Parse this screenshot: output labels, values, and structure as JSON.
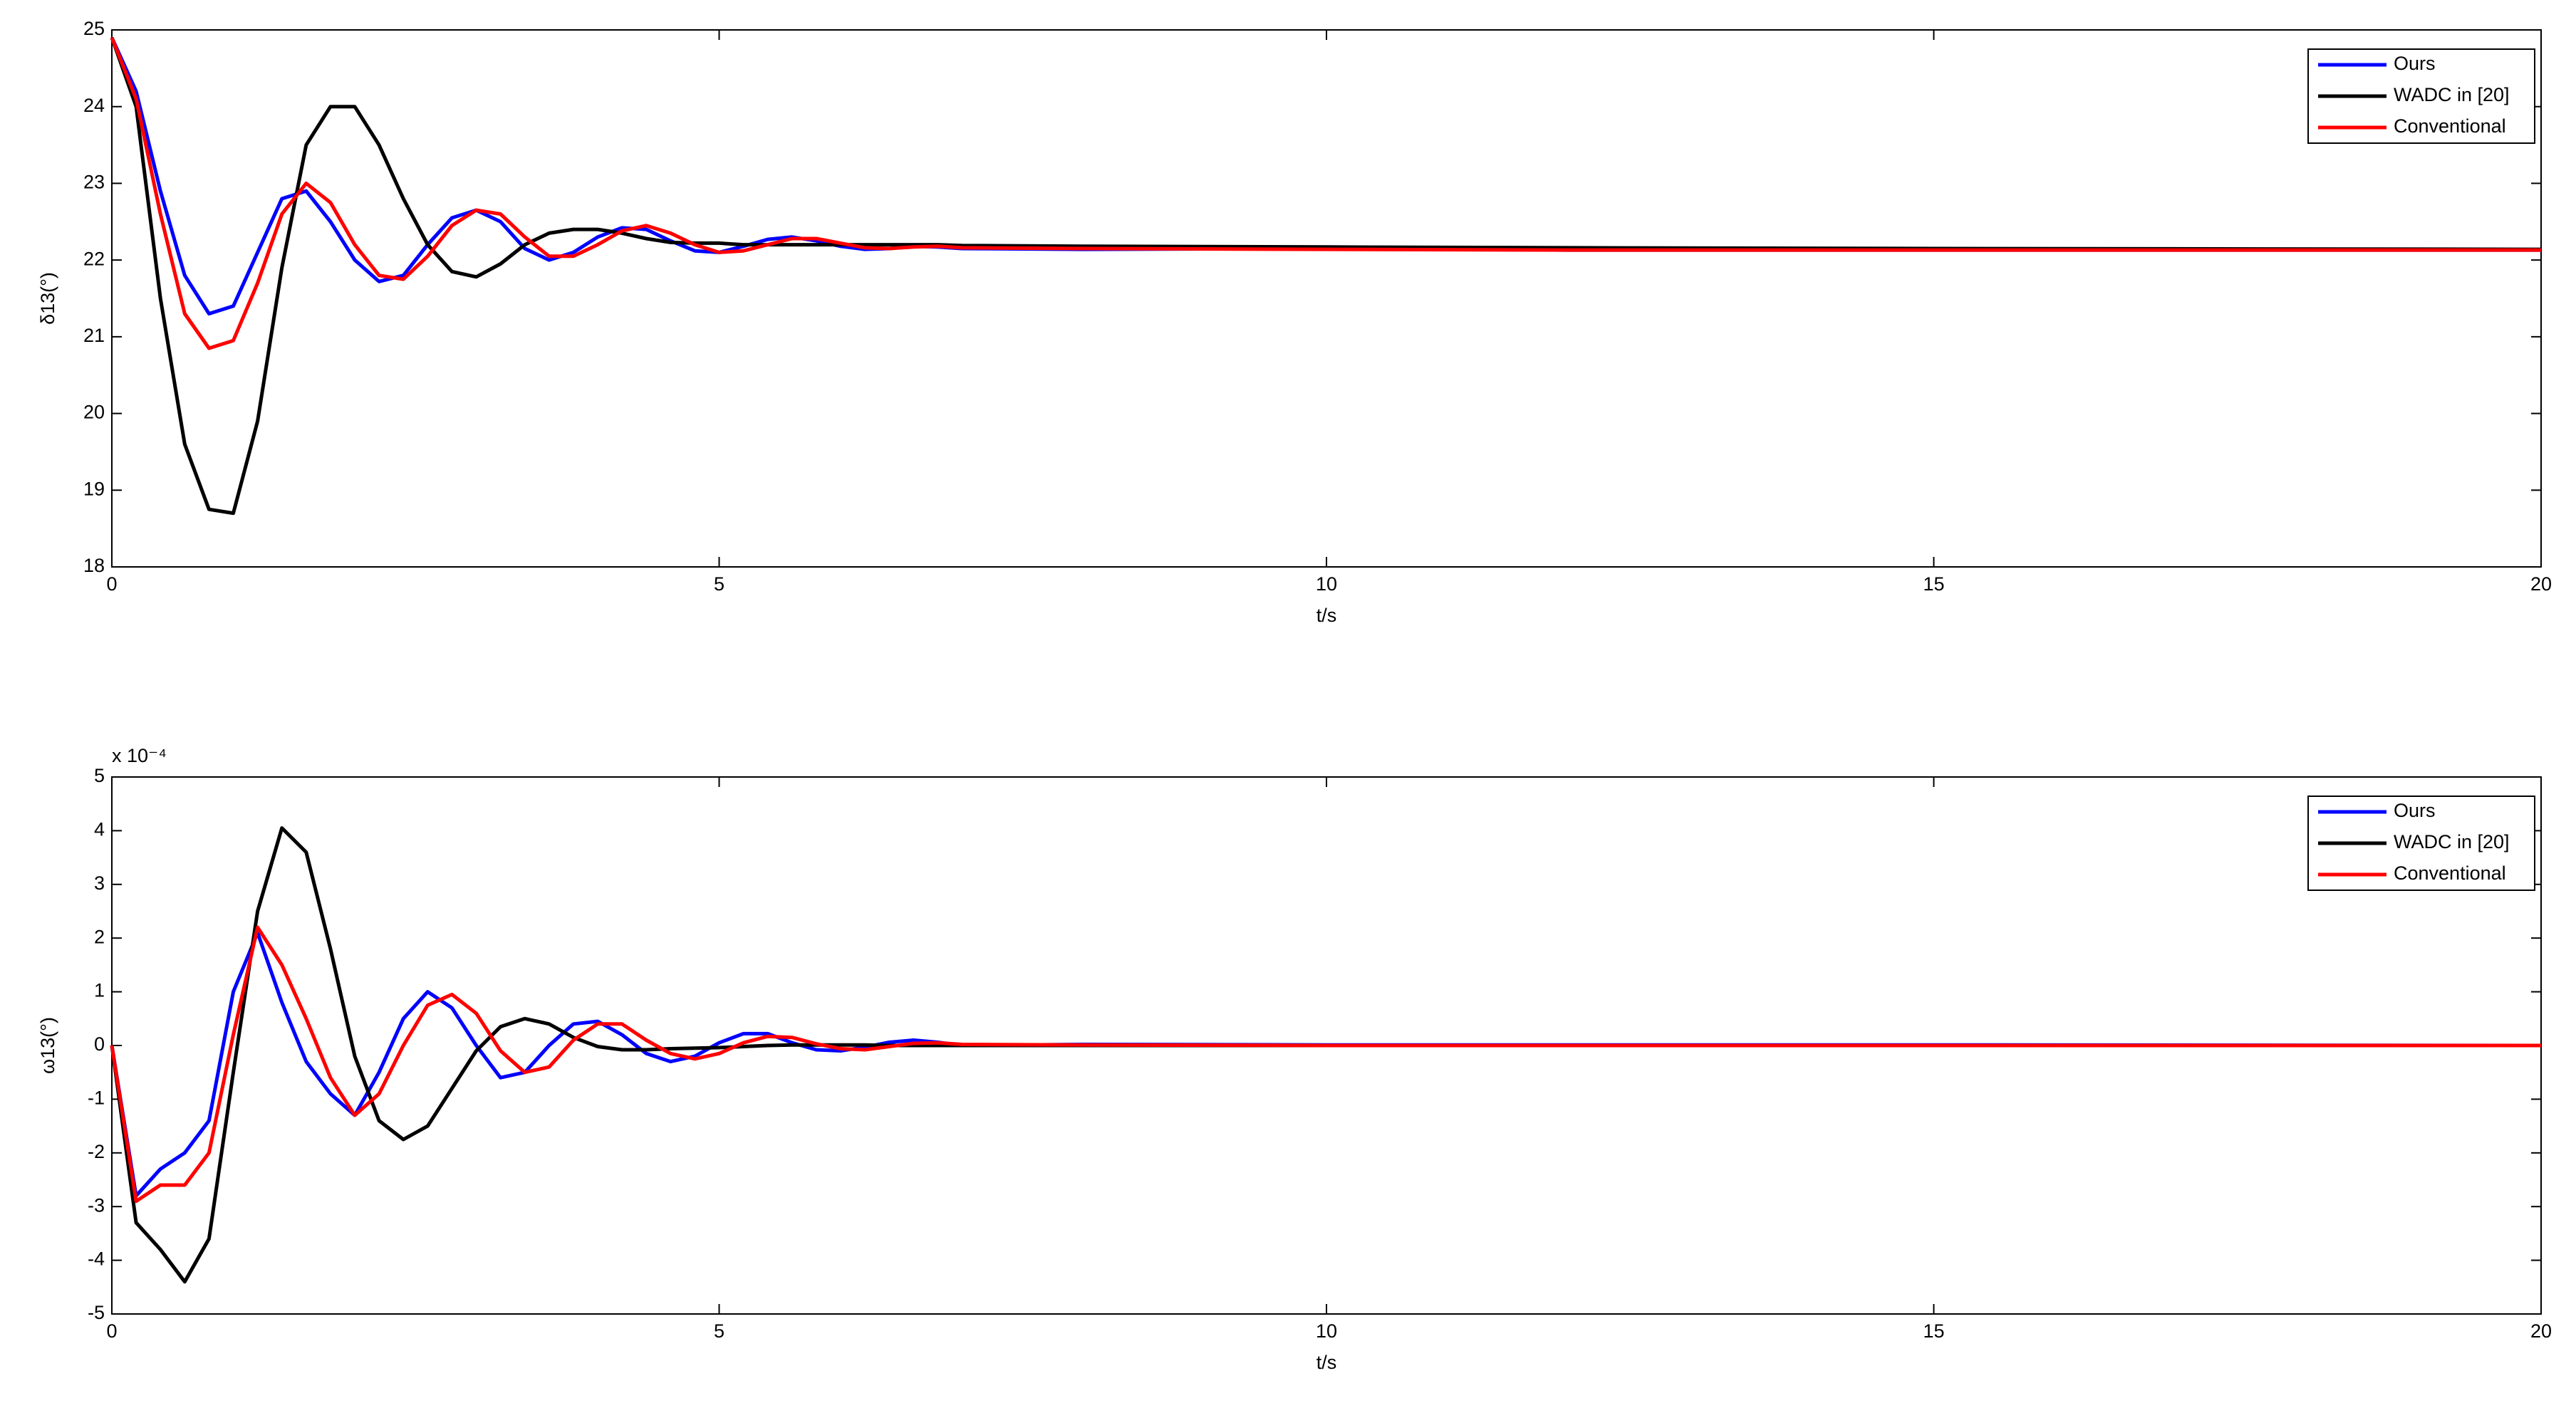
{
  "chart_data": [
    {
      "type": "line",
      "x_label": "t/s",
      "y_label": "δ13(°)",
      "legend": "upper right",
      "xlim": [
        0,
        20
      ],
      "xticks": [
        0,
        5,
        10,
        15,
        20
      ],
      "ylim": [
        18,
        25
      ],
      "yticks": [
        18,
        19,
        20,
        21,
        22,
        23,
        24,
        25
      ],
      "x": [
        0,
        0.2,
        0.4,
        0.6,
        0.8,
        1.0,
        1.2,
        1.4,
        1.6,
        1.8,
        2.0,
        2.2,
        2.4,
        2.6,
        2.8,
        3.0,
        3.2,
        3.4,
        3.6,
        3.8,
        4.0,
        4.2,
        4.4,
        4.6,
        4.8,
        5.0,
        5.2,
        5.4,
        5.6,
        5.8,
        6.0,
        6.2,
        6.4,
        6.6,
        6.8,
        7.0,
        8,
        10,
        12,
        15,
        20
      ],
      "series": [
        {
          "name": "Ours",
          "color": "#0000ff",
          "values": [
            24.9,
            24.2,
            22.9,
            21.8,
            21.3,
            21.4,
            22.1,
            22.8,
            22.9,
            22.5,
            22.0,
            21.72,
            21.8,
            22.2,
            22.55,
            22.65,
            22.5,
            22.15,
            22.0,
            22.1,
            22.3,
            22.42,
            22.4,
            22.25,
            22.12,
            22.1,
            22.18,
            22.27,
            22.3,
            22.25,
            22.18,
            22.14,
            22.15,
            22.18,
            22.17,
            22.15,
            22.14,
            22.15,
            22.13,
            22.13,
            22.13
          ]
        },
        {
          "name": "WADC in [20]",
          "color": "#000000",
          "values": [
            24.9,
            24.0,
            21.5,
            19.6,
            18.75,
            18.7,
            19.9,
            21.9,
            23.5,
            24.0,
            24.0,
            23.5,
            22.8,
            22.2,
            21.85,
            21.78,
            21.95,
            22.2,
            22.35,
            22.4,
            22.4,
            22.35,
            22.28,
            22.23,
            22.22,
            22.22,
            22.2,
            22.2,
            22.2,
            22.2,
            22.2,
            22.2,
            22.2,
            22.2,
            22.2,
            22.19,
            22.18,
            22.17,
            22.16,
            22.15,
            22.14
          ]
        },
        {
          "name": "Conventional",
          "color": "#ff0000",
          "values": [
            24.9,
            24.1,
            22.6,
            21.3,
            20.85,
            20.95,
            21.7,
            22.6,
            23.0,
            22.75,
            22.2,
            21.8,
            21.75,
            22.05,
            22.45,
            22.65,
            22.6,
            22.3,
            22.05,
            22.05,
            22.2,
            22.38,
            22.45,
            22.35,
            22.2,
            22.1,
            22.12,
            22.2,
            22.28,
            22.28,
            22.22,
            22.16,
            22.15,
            22.17,
            22.18,
            22.16,
            22.15,
            22.14,
            22.13,
            22.13,
            22.13
          ]
        }
      ]
    },
    {
      "type": "line",
      "x_label": "t/s",
      "y_label": "ω13(°)",
      "y_multiplier_label": "x 10⁻⁴",
      "legend": "upper right",
      "xlim": [
        0,
        20
      ],
      "xticks": [
        0,
        5,
        10,
        15,
        20
      ],
      "ylim": [
        -5,
        5
      ],
      "yticks": [
        -5,
        -4,
        -3,
        -2,
        -1,
        0,
        1,
        2,
        3,
        4,
        5
      ],
      "x": [
        0,
        0.2,
        0.4,
        0.6,
        0.8,
        1.0,
        1.2,
        1.4,
        1.6,
        1.8,
        2.0,
        2.2,
        2.4,
        2.6,
        2.8,
        3.0,
        3.2,
        3.4,
        3.6,
        3.8,
        4.0,
        4.2,
        4.4,
        4.6,
        4.8,
        5.0,
        5.2,
        5.4,
        5.6,
        5.8,
        6.0,
        6.2,
        6.4,
        6.6,
        6.8,
        7.0,
        8,
        10,
        12,
        15,
        20
      ],
      "series": [
        {
          "name": "Ours",
          "color": "#0000ff",
          "values": [
            0,
            -2.8,
            -2.3,
            -2.0,
            -1.4,
            1.0,
            2.1,
            0.8,
            -0.3,
            -0.9,
            -1.3,
            -0.5,
            0.5,
            1.0,
            0.7,
            0.0,
            -0.6,
            -0.5,
            0.0,
            0.4,
            0.45,
            0.2,
            -0.15,
            -0.3,
            -0.2,
            0.05,
            0.22,
            0.22,
            0.05,
            -0.08,
            -0.1,
            -0.03,
            0.06,
            0.1,
            0.06,
            0.0,
            0.02,
            0.01,
            0.01,
            0.01,
            0
          ]
        },
        {
          "name": "WADC in [20]",
          "color": "#000000",
          "values": [
            0,
            -3.3,
            -3.8,
            -4.4,
            -3.6,
            -0.5,
            2.5,
            4.05,
            3.6,
            1.8,
            -0.2,
            -1.4,
            -1.75,
            -1.5,
            -0.8,
            -0.1,
            0.35,
            0.5,
            0.4,
            0.15,
            -0.02,
            -0.08,
            -0.08,
            -0.06,
            -0.05,
            -0.04,
            -0.02,
            0,
            0.01,
            0.01,
            0.01,
            0.01,
            0,
            0,
            0,
            0,
            0,
            0,
            0,
            0,
            0
          ]
        },
        {
          "name": "Conventional",
          "color": "#ff0000",
          "values": [
            0,
            -2.9,
            -2.6,
            -2.6,
            -2.0,
            0.2,
            2.2,
            1.5,
            0.5,
            -0.6,
            -1.3,
            -0.9,
            0.0,
            0.75,
            0.95,
            0.6,
            -0.1,
            -0.5,
            -0.4,
            0.1,
            0.4,
            0.4,
            0.1,
            -0.15,
            -0.25,
            -0.15,
            0.05,
            0.17,
            0.15,
            0.03,
            -0.06,
            -0.08,
            -0.02,
            0.04,
            0.05,
            0.02,
            0.01,
            0,
            0,
            0,
            0
          ]
        }
      ]
    }
  ]
}
